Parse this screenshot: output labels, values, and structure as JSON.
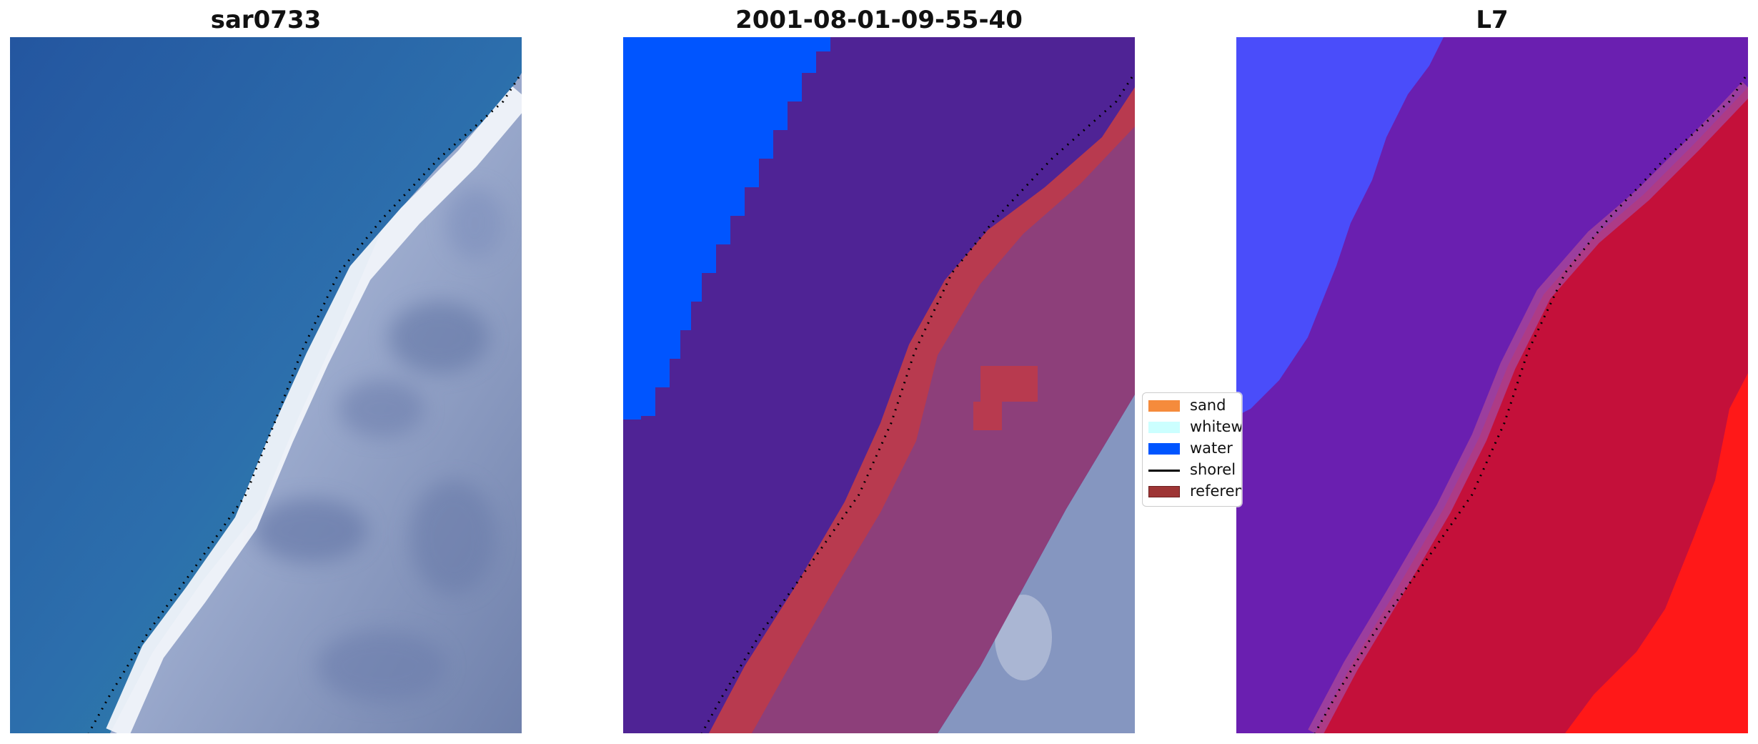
{
  "panels": [
    {
      "title": "sar0733"
    },
    {
      "title": "2001-08-01-09-55-40"
    },
    {
      "title": "L7"
    }
  ],
  "legend": {
    "items": [
      {
        "label": "sand",
        "color": "#f58b3c",
        "type": "patch"
      },
      {
        "label": "whitew",
        "color": "#ccffff",
        "type": "patch"
      },
      {
        "label": "water",
        "color": "#0055ff",
        "type": "patch"
      },
      {
        "label": "shorel",
        "color": "#000000",
        "type": "line"
      },
      {
        "label": "referen",
        "color": "#9e3535",
        "type": "patch"
      }
    ]
  },
  "colors": {
    "ocean": "#2a6fae",
    "surf": "#e9eef6",
    "land": "#7f90b8",
    "water_class": "#0055ff",
    "class_region": "#4f2395",
    "reference_band": "#b83a4f",
    "land_overlay": "#8d3f7a",
    "l7_water": "#4a4dfa",
    "l7_mid": "#6a1fb0",
    "l7_land": "#c4103a",
    "l7_bright": "#ff1818"
  }
}
